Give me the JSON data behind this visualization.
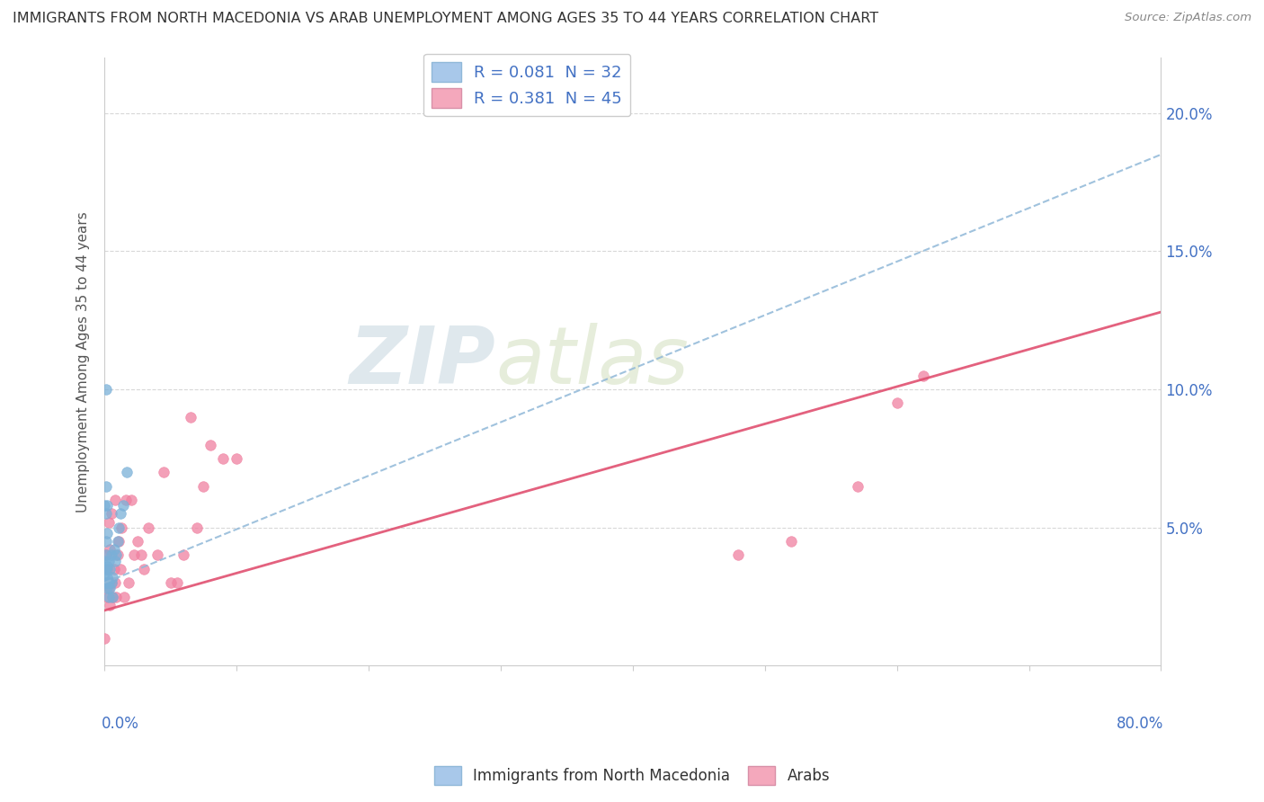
{
  "title": "IMMIGRANTS FROM NORTH MACEDONIA VS ARAB UNEMPLOYMENT AMONG AGES 35 TO 44 YEARS CORRELATION CHART",
  "source": "Source: ZipAtlas.com",
  "ylabel": "Unemployment Among Ages 35 to 44 years",
  "xlim": [
    0.0,
    0.8
  ],
  "ylim": [
    0.0,
    0.22
  ],
  "ytick_positions": [
    0.05,
    0.1,
    0.15,
    0.2
  ],
  "ytick_labels": [
    "5.0%",
    "10.0%",
    "15.0%",
    "20.0%"
  ],
  "legend1_label": "R = 0.081  N = 32",
  "legend2_label": "R = 0.381  N = 45",
  "legend_color1": "#a8c8ea",
  "legend_color2": "#f4a8bc",
  "dot_color1": "#7ab0d8",
  "dot_color2": "#f080a0",
  "trend_color1": "#90b8d8",
  "trend_color2": "#e05070",
  "background_color": "#ffffff",
  "tick_color": "#4472c4",
  "grid_color": "#d8d8d8",
  "title_color": "#333333",
  "source_color": "#888888",
  "watermark_color": "#dce8f0",
  "s1_x": [
    0.0,
    0.0,
    0.0,
    0.001,
    0.001,
    0.001,
    0.001,
    0.001,
    0.001,
    0.001,
    0.002,
    0.002,
    0.002,
    0.002,
    0.002,
    0.003,
    0.003,
    0.003,
    0.004,
    0.004,
    0.005,
    0.005,
    0.006,
    0.006,
    0.007,
    0.008,
    0.009,
    0.01,
    0.011,
    0.012,
    0.014,
    0.017
  ],
  "s1_y": [
    0.033,
    0.038,
    0.058,
    0.03,
    0.035,
    0.04,
    0.045,
    0.055,
    0.065,
    0.1,
    0.028,
    0.032,
    0.036,
    0.048,
    0.058,
    0.025,
    0.03,
    0.038,
    0.028,
    0.035,
    0.03,
    0.04,
    0.025,
    0.032,
    0.042,
    0.038,
    0.04,
    0.045,
    0.05,
    0.055,
    0.058,
    0.07
  ],
  "s2_x": [
    0.0,
    0.001,
    0.001,
    0.002,
    0.002,
    0.003,
    0.003,
    0.004,
    0.004,
    0.005,
    0.005,
    0.006,
    0.007,
    0.008,
    0.008,
    0.009,
    0.01,
    0.011,
    0.012,
    0.013,
    0.015,
    0.016,
    0.018,
    0.02,
    0.022,
    0.025,
    0.028,
    0.03,
    0.033,
    0.04,
    0.045,
    0.05,
    0.055,
    0.06,
    0.065,
    0.07,
    0.075,
    0.08,
    0.09,
    0.1,
    0.48,
    0.52,
    0.57,
    0.6,
    0.62
  ],
  "s2_y": [
    0.01,
    0.03,
    0.04,
    0.025,
    0.035,
    0.028,
    0.052,
    0.022,
    0.042,
    0.03,
    0.055,
    0.025,
    0.035,
    0.03,
    0.06,
    0.025,
    0.04,
    0.045,
    0.035,
    0.05,
    0.025,
    0.06,
    0.03,
    0.06,
    0.04,
    0.045,
    0.04,
    0.035,
    0.05,
    0.04,
    0.07,
    0.03,
    0.03,
    0.04,
    0.09,
    0.05,
    0.065,
    0.08,
    0.075,
    0.075,
    0.04,
    0.045,
    0.065,
    0.095,
    0.105
  ],
  "trend1_x0": 0.0,
  "trend1_y0": 0.03,
  "trend1_x1": 0.8,
  "trend1_y1": 0.185,
  "trend2_x0": 0.0,
  "trend2_y0": 0.02,
  "trend2_x1": 0.8,
  "trend2_y1": 0.128
}
